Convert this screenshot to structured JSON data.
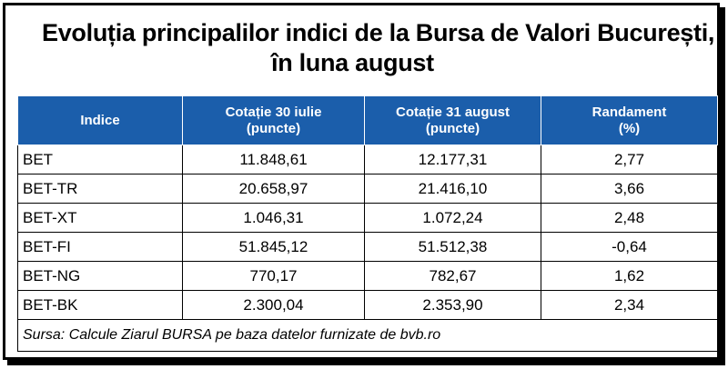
{
  "title": {
    "line1": "Evoluția principalilor indici de la Bursa de Valori București,",
    "line2": "în luna august"
  },
  "table": {
    "headers": [
      {
        "line1": "Indice",
        "line2": ""
      },
      {
        "line1": "Cotație 30 iulie",
        "line2": "(puncte)"
      },
      {
        "line1": "Cotație 31 august",
        "line2": "(puncte)"
      },
      {
        "line1": "Randament",
        "line2": "(%)"
      }
    ],
    "rows": [
      [
        "BET",
        "11.848,61",
        "12.177,31",
        "2,77"
      ],
      [
        "BET-TR",
        "20.658,97",
        "21.416,10",
        "3,66"
      ],
      [
        "BET-XT",
        "1.046,31",
        "1.072,24",
        "2,48"
      ],
      [
        "BET-FI",
        "51.845,12",
        "51.512,38",
        "-0,64"
      ],
      [
        "BET-NG",
        "770,17",
        "782,67",
        "1,62"
      ],
      [
        "BET-BK",
        "2.300,04",
        "2.353,90",
        "2,34"
      ]
    ],
    "source": "Sursa: Calcule Ziarul BURSA pe baza datelor furnizate de bvb.ro"
  },
  "colors": {
    "header_bg": "#1b5eab",
    "header_text": "#ffffff",
    "border": "#000000"
  }
}
